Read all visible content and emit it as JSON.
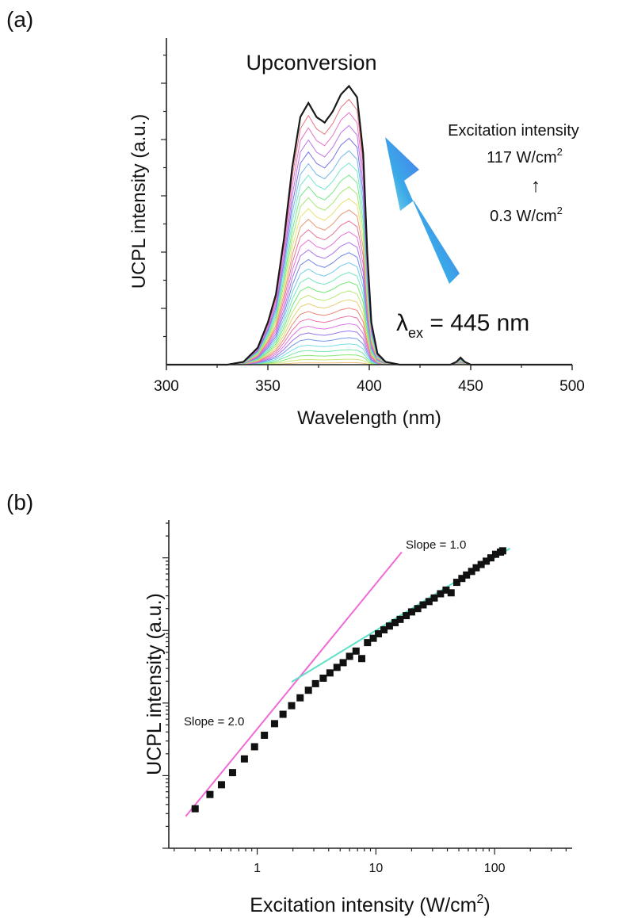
{
  "chart_data": [
    {
      "panel_label": "(a)",
      "type": "line",
      "title": "Upconversion",
      "xlabel": "Wavelength (nm)",
      "ylabel": "UCPL intensity (a.u.)",
      "xlim": [
        300,
        500
      ],
      "ylim": [
        0,
        1
      ],
      "xticks": [
        "300",
        "350",
        "400",
        "450",
        "500"
      ],
      "y_tick_labels": false,
      "grid": false,
      "series_count": 30,
      "excitation_peak_nm": 445,
      "series": [
        {
          "role": "highest excitation intensity (117 W/cm2)",
          "x": [
            300,
            330,
            338,
            345,
            350,
            354,
            358,
            362,
            366,
            370,
            374,
            378,
            382,
            386,
            390,
            394,
            397,
            399,
            401,
            404,
            408,
            415,
            425,
            440,
            443,
            445,
            447,
            450,
            470,
            500
          ],
          "y": [
            0,
            0,
            0.01,
            0.06,
            0.15,
            0.25,
            0.45,
            0.7,
            0.88,
            0.93,
            0.88,
            0.86,
            0.9,
            0.96,
            0.99,
            0.95,
            0.75,
            0.4,
            0.15,
            0.04,
            0.01,
            0,
            0,
            0,
            0.01,
            0.025,
            0.01,
            0,
            0,
            0
          ]
        }
      ],
      "annotations": {
        "excitation_label": "Excitation intensity",
        "intensity_high_value": "117 W/cm",
        "intensity_low_value": "0.3 W/cm",
        "superscript": "2",
        "up_arrow": "↑",
        "lambda_symbol": "λ",
        "lambda_subscript": "ex",
        "lambda_value": " = 445 nm"
      }
    },
    {
      "panel_label": "(b)",
      "type": "scatter",
      "xlabel_text": "Excitation intensity (W/cm",
      "xlabel_sup": "2",
      "xlabel_close": ")",
      "ylabel": "UCPL intensity (a.u.)",
      "xscale": "log",
      "yscale": "log",
      "xlim": [
        0.18,
        450
      ],
      "ylim": [
        0.001,
        30
      ],
      "xticks": [
        "1",
        "10",
        "100"
      ],
      "y_tick_labels": false,
      "grid": false,
      "points": {
        "x": [
          0.3,
          0.4,
          0.5,
          0.62,
          0.78,
          0.95,
          1.15,
          1.4,
          1.65,
          1.95,
          2.3,
          2.7,
          3.1,
          3.6,
          4.1,
          4.7,
          5.3,
          6.0,
          6.8,
          7.6,
          8.5,
          9.5,
          10.5,
          11.7,
          13.0,
          14.5,
          16,
          18,
          20,
          22.5,
          25,
          28,
          31,
          35,
          39,
          43,
          48,
          53,
          58,
          64,
          70,
          77,
          85,
          93,
          102,
          112,
          117
        ],
        "y": [
          0.0035,
          0.0055,
          0.0075,
          0.011,
          0.017,
          0.025,
          0.036,
          0.052,
          0.07,
          0.092,
          0.118,
          0.15,
          0.185,
          0.22,
          0.26,
          0.31,
          0.36,
          0.44,
          0.52,
          0.41,
          0.68,
          0.78,
          0.9,
          1.02,
          1.15,
          1.28,
          1.42,
          1.6,
          1.8,
          2.0,
          2.25,
          2.5,
          2.8,
          3.2,
          3.6,
          3.3,
          4.6,
          5.2,
          5.8,
          6.5,
          7.3,
          8.1,
          9.0,
          10.0,
          11.2,
          12.0,
          12.5
        ]
      },
      "fits": [
        {
          "label": "Slope = 2.0",
          "slope": 2.0,
          "color": "#f06ad8",
          "x_range": [
            0.25,
            16.5
          ],
          "y_at_x1": 0.044
        },
        {
          "label": "Slope = 1.0",
          "slope": 1.0,
          "color": "#5fe0c8",
          "x_range": [
            1.95,
            135
          ],
          "y_at_x1": 0.1
        }
      ]
    }
  ]
}
